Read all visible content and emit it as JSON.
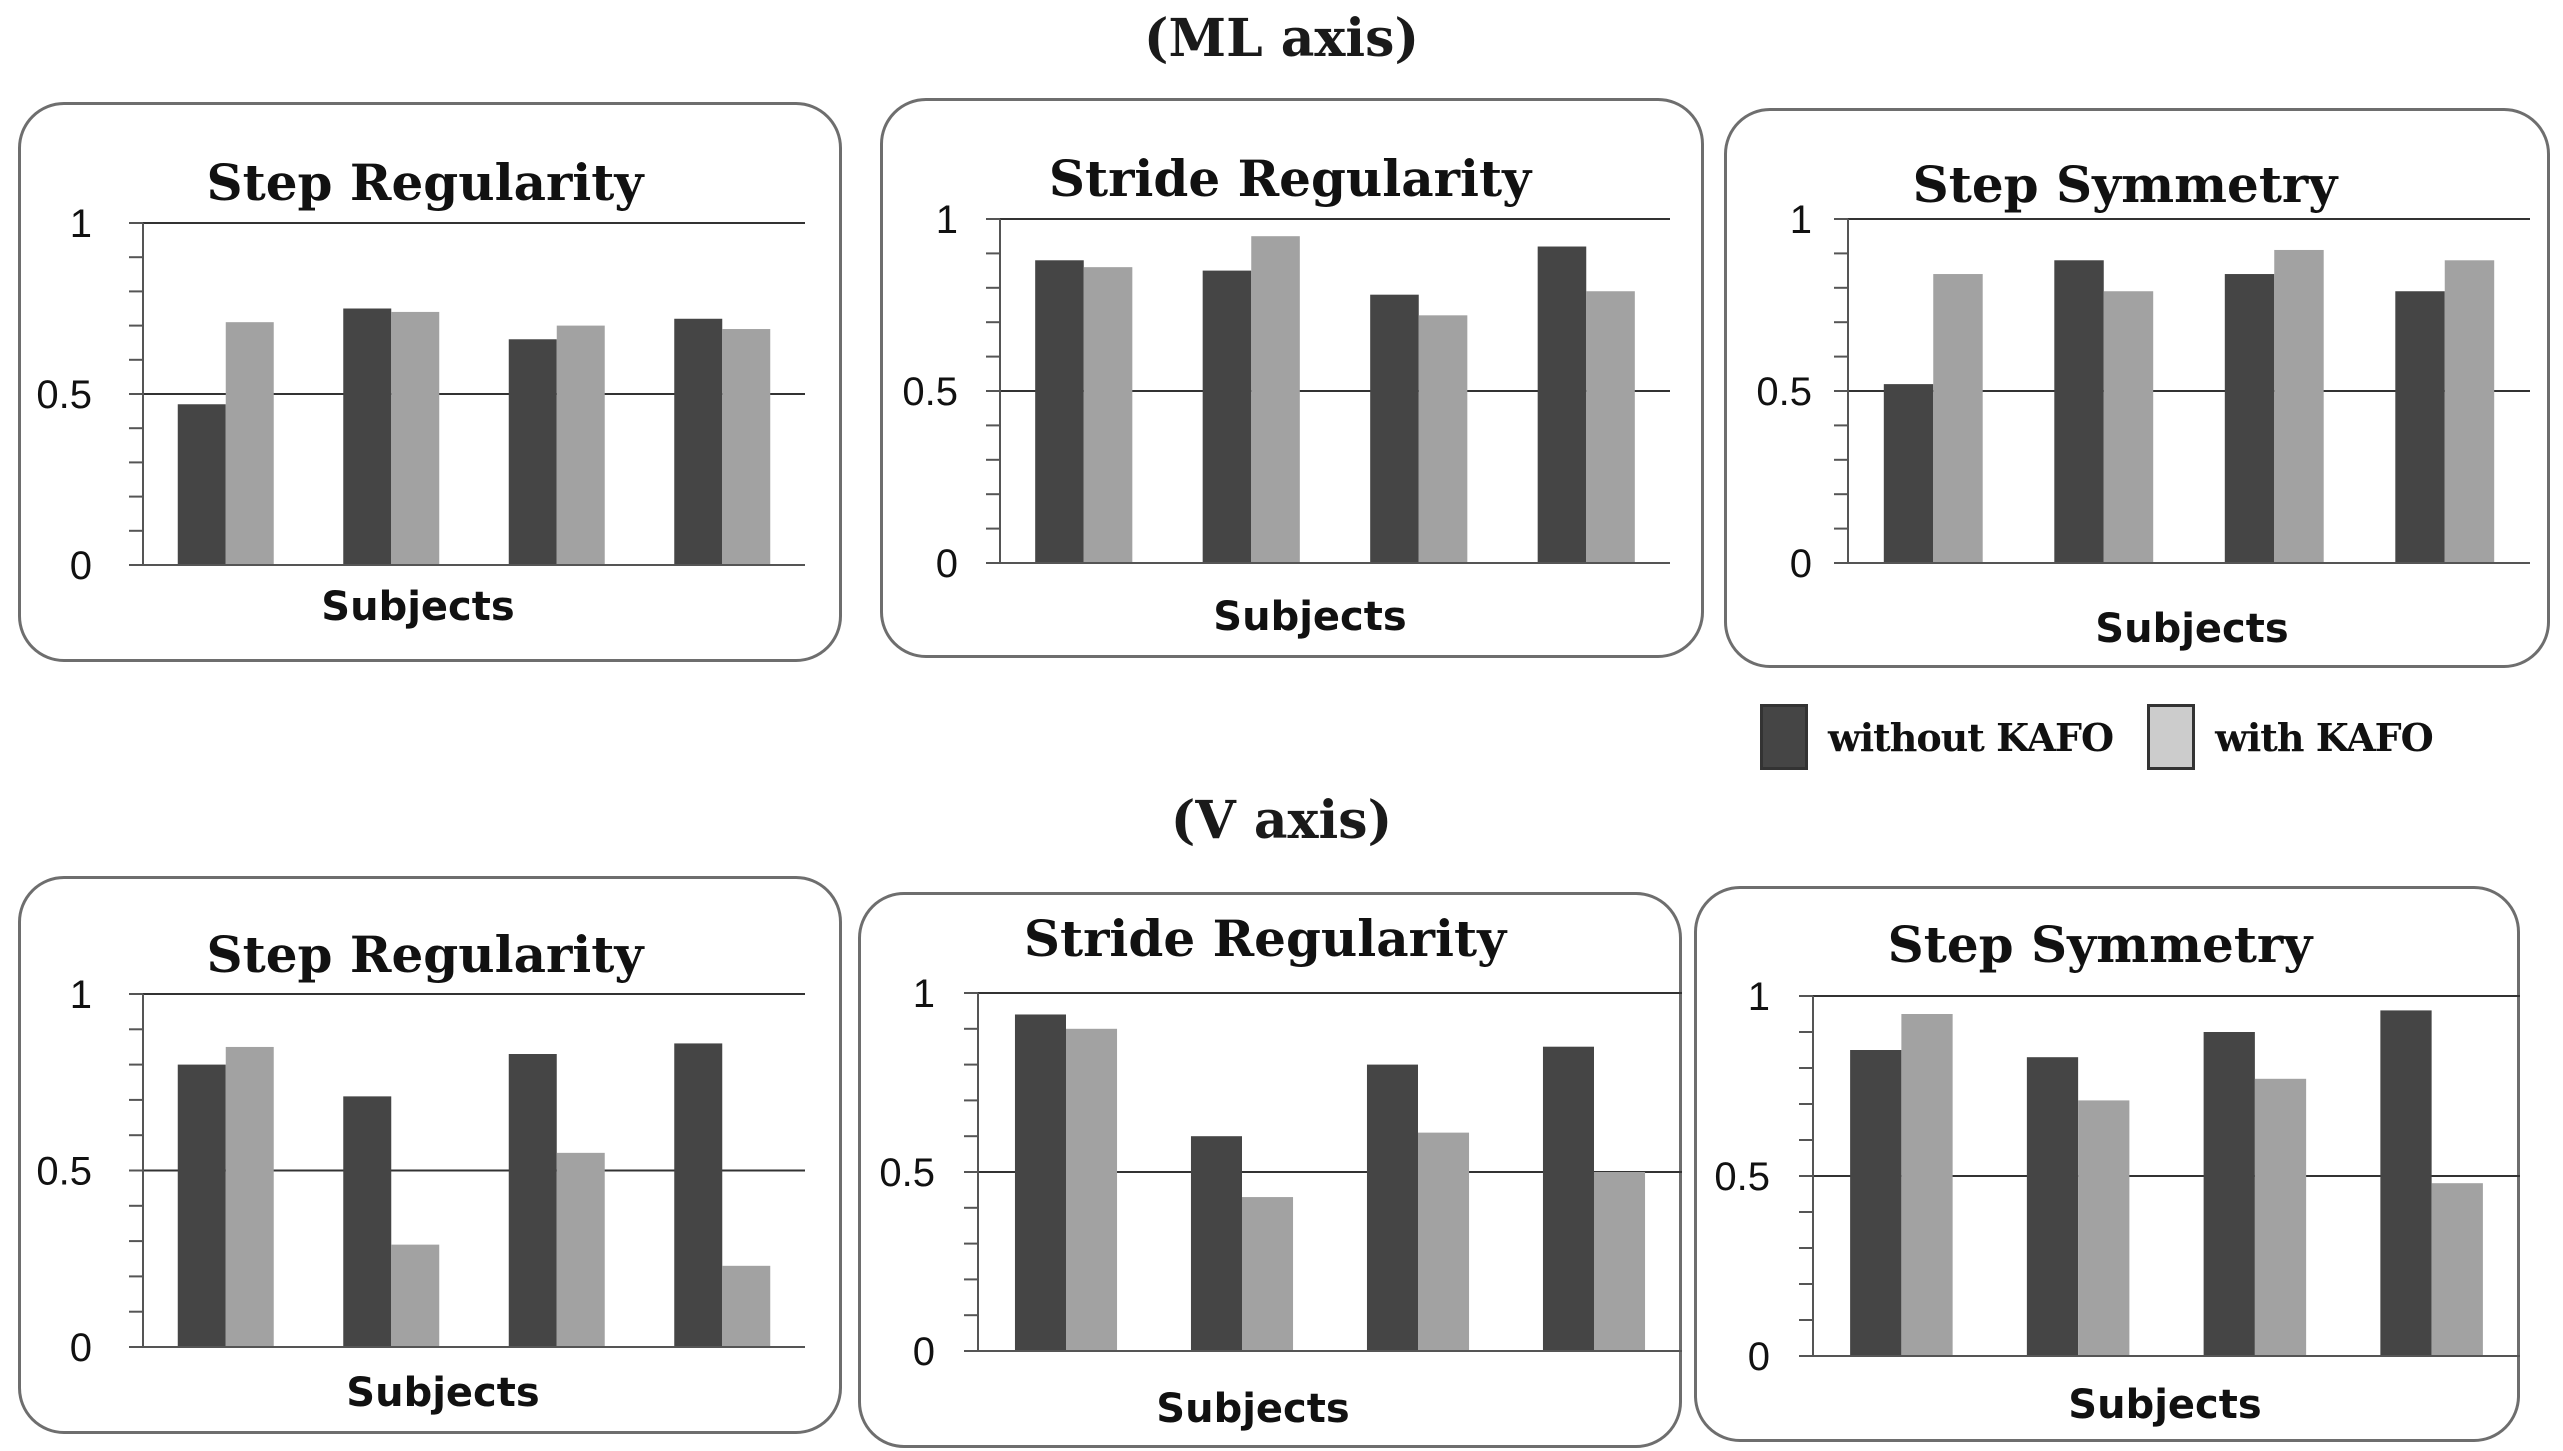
{
  "sections": {
    "ml_title": "(ML axis)",
    "v_title": "(V axis)"
  },
  "legend": {
    "without_label": "without KAFO",
    "with_label": "with KAFO",
    "without_color": "#454545",
    "with_color": "#a2a2a2",
    "with_swatch_color": "#cccccc"
  },
  "chart_data": [
    {
      "type": "bar",
      "group": "ML axis",
      "title": "Step Regularity",
      "xlabel": "Subjects",
      "ylabel": "",
      "ylim": [
        0,
        1
      ],
      "yticks": [
        "0",
        "0.5",
        "1"
      ],
      "categories": [
        "",
        "",
        "",
        ""
      ],
      "series": [
        {
          "name": "without KAFO",
          "values": [
            0.47,
            0.75,
            0.66,
            0.72
          ]
        },
        {
          "name": "with KAFO",
          "values": [
            0.71,
            0.74,
            0.7,
            0.69
          ]
        }
      ]
    },
    {
      "type": "bar",
      "group": "ML axis",
      "title": "Stride Regularity",
      "xlabel": "Subjects",
      "ylabel": "",
      "ylim": [
        0,
        1
      ],
      "yticks": [
        "0",
        "0.5",
        "1"
      ],
      "categories": [
        "",
        "",
        "",
        ""
      ],
      "series": [
        {
          "name": "without KAFO",
          "values": [
            0.88,
            0.85,
            0.78,
            0.92
          ]
        },
        {
          "name": "with KAFO",
          "values": [
            0.86,
            0.95,
            0.72,
            0.79
          ]
        }
      ]
    },
    {
      "type": "bar",
      "group": "ML axis",
      "title": "Step Symmetry",
      "xlabel": "Subjects",
      "ylabel": "",
      "ylim": [
        0,
        1
      ],
      "yticks": [
        "0",
        "0.5",
        "1"
      ],
      "categories": [
        "",
        "",
        "",
        ""
      ],
      "series": [
        {
          "name": "without KAFO",
          "values": [
            0.52,
            0.88,
            0.84,
            0.79
          ]
        },
        {
          "name": "with KAFO",
          "values": [
            0.84,
            0.79,
            0.91,
            0.88
          ]
        }
      ]
    },
    {
      "type": "bar",
      "group": "V axis",
      "title": "Step Regularity",
      "xlabel": "Subjects",
      "ylabel": "",
      "ylim": [
        0,
        1
      ],
      "yticks": [
        "0",
        "0.5",
        "1"
      ],
      "categories": [
        "",
        "",
        "",
        ""
      ],
      "series": [
        {
          "name": "without KAFO",
          "values": [
            0.8,
            0.71,
            0.83,
            0.86
          ]
        },
        {
          "name": "with KAFO",
          "values": [
            0.85,
            0.29,
            0.55,
            0.23
          ]
        }
      ]
    },
    {
      "type": "bar",
      "group": "V axis",
      "title": "Stride Regularity",
      "xlabel": "Subjects",
      "ylabel": "",
      "ylim": [
        0,
        1
      ],
      "yticks": [
        "0",
        "0.5",
        "1"
      ],
      "categories": [
        "",
        "",
        "",
        ""
      ],
      "series": [
        {
          "name": "without KAFO",
          "values": [
            0.94,
            0.6,
            0.8,
            0.85
          ]
        },
        {
          "name": "with KAFO",
          "values": [
            0.9,
            0.43,
            0.61,
            0.5
          ]
        }
      ]
    },
    {
      "type": "bar",
      "group": "V axis",
      "title": "Step Symmetry",
      "xlabel": "Subjects",
      "ylabel": "",
      "ylim": [
        0,
        1
      ],
      "yticks": [
        "0",
        "0.5",
        "1"
      ],
      "categories": [
        "",
        "",
        "",
        ""
      ],
      "series": [
        {
          "name": "without KAFO",
          "values": [
            0.85,
            0.83,
            0.9,
            0.96
          ]
        },
        {
          "name": "with KAFO",
          "values": [
            0.95,
            0.71,
            0.77,
            0.48
          ]
        }
      ]
    }
  ]
}
